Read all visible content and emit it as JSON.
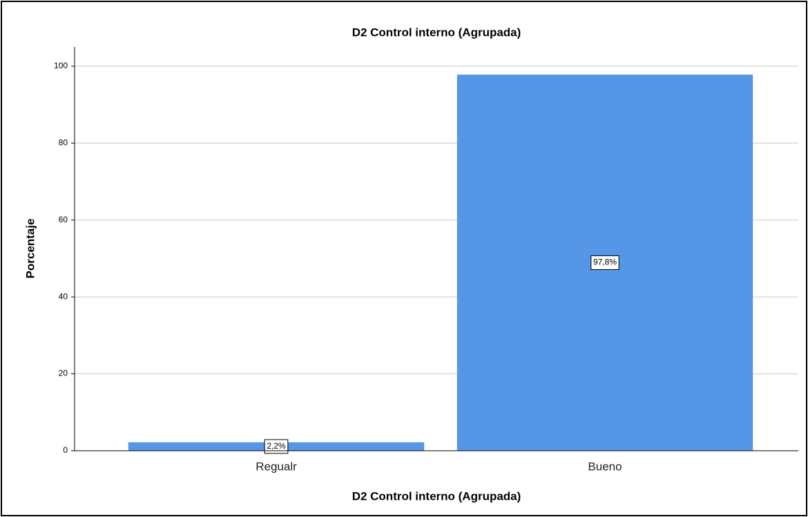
{
  "chart_data": {
    "type": "bar",
    "title": "D2 Control interno (Agrupada)",
    "x_label": "D2 Control interno (Agrupada)",
    "y_label": "Porcentaje",
    "categories": [
      "Regualr",
      "Bueno"
    ],
    "values": [
      2.2,
      97.8
    ],
    "value_labels": [
      "2,2%",
      "97,8%"
    ],
    "color": "#5596e6",
    "ylim": [
      0,
      105
    ],
    "yticks": [
      0,
      20,
      40,
      60,
      80,
      100
    ],
    "grid": true
  }
}
